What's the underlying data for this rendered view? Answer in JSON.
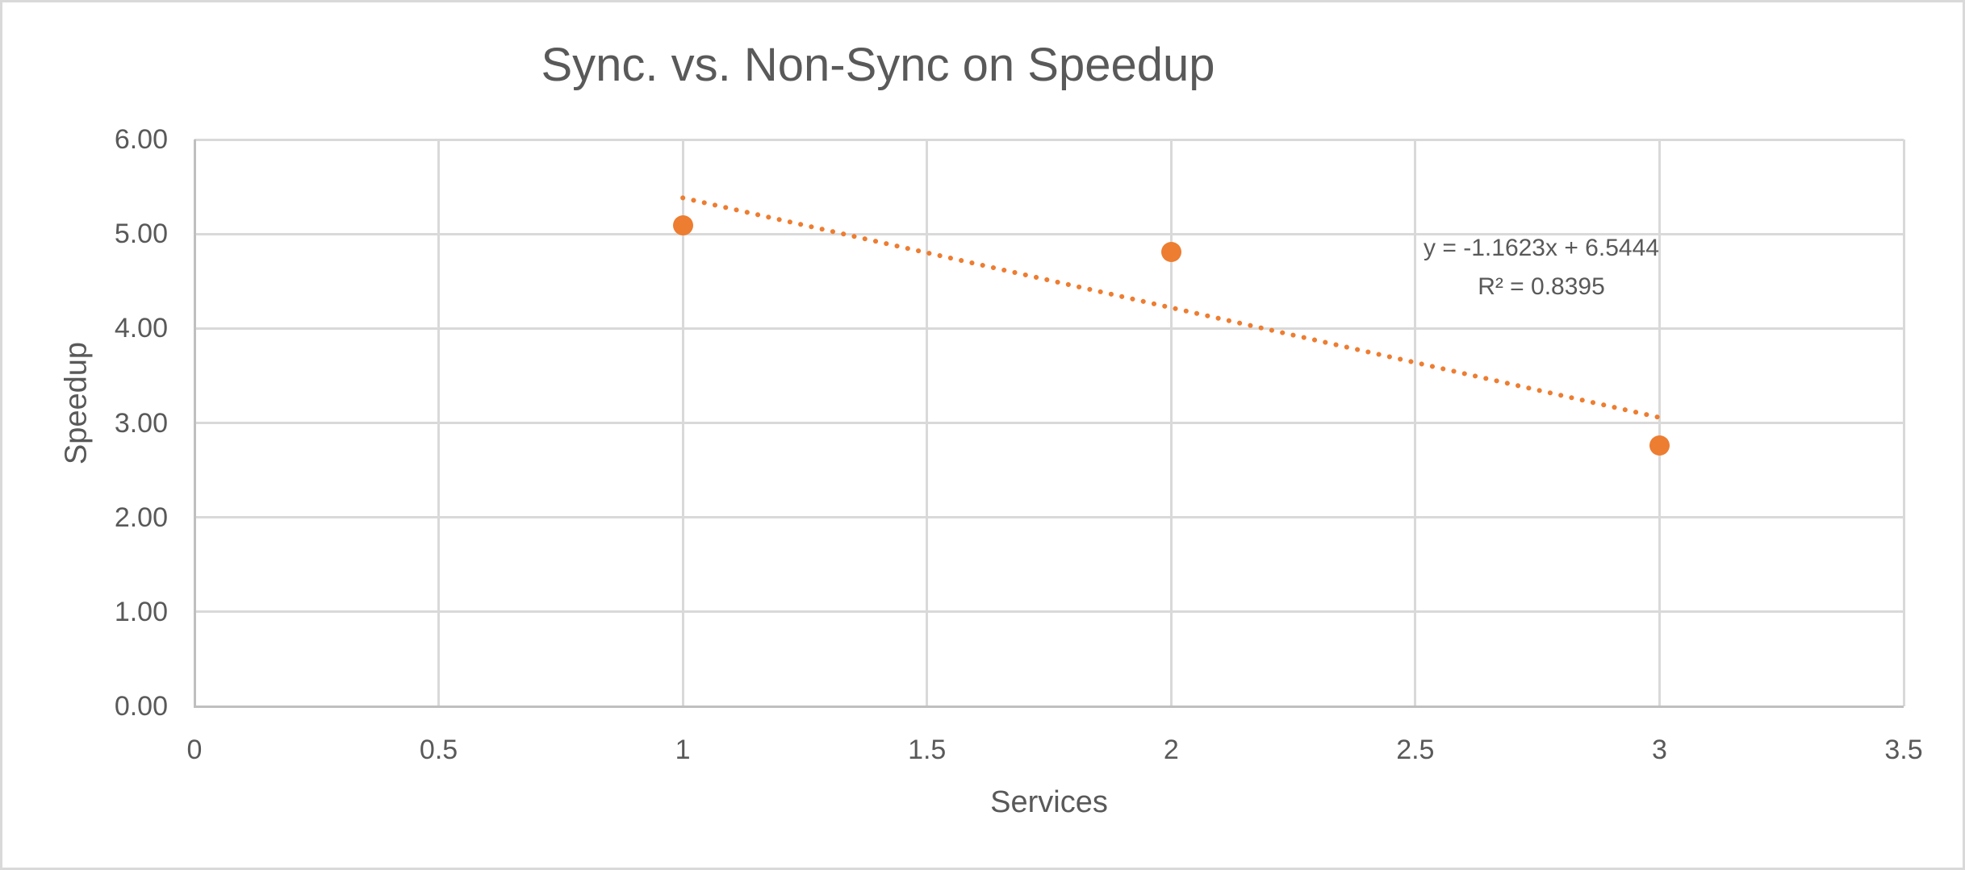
{
  "chart_data": {
    "type": "scatter",
    "title": "Sync. vs. Non-Sync on Speedup",
    "xlabel": "Services",
    "ylabel": "Speedup",
    "xlim": [
      0,
      3.5
    ],
    "ylim": [
      0,
      6
    ],
    "x_ticks": [
      0,
      0.5,
      1,
      1.5,
      2,
      2.5,
      3,
      3.5
    ],
    "x_tick_labels": [
      "0",
      "0.5",
      "1",
      "1.5",
      "2",
      "2.5",
      "3",
      "3.5"
    ],
    "y_ticks": [
      0,
      1,
      2,
      3,
      4,
      5,
      6
    ],
    "y_tick_labels": [
      "0.00",
      "1.00",
      "2.00",
      "3.00",
      "4.00",
      "5.00",
      "6.00"
    ],
    "grid": true,
    "legend": false,
    "series": [
      {
        "name": "Speedup",
        "points": [
          {
            "x": 1,
            "y": 5.09
          },
          {
            "x": 2,
            "y": 4.81
          },
          {
            "x": 3,
            "y": 2.76
          }
        ]
      }
    ],
    "trendline": {
      "slope": -1.1623,
      "intercept": 6.5444,
      "x_start": 1,
      "x_end": 3,
      "style": "dotted",
      "equation_label": "y = -1.1623x + 6.5444",
      "r2_label": "R² = 0.8395"
    },
    "colors": {
      "accent": "#ED7D31",
      "gridline": "#D9D9D9",
      "axis_line": "#BFBFBF",
      "text": "#595959",
      "background": "#FFFFFF",
      "border": "#D9D9D9"
    }
  }
}
